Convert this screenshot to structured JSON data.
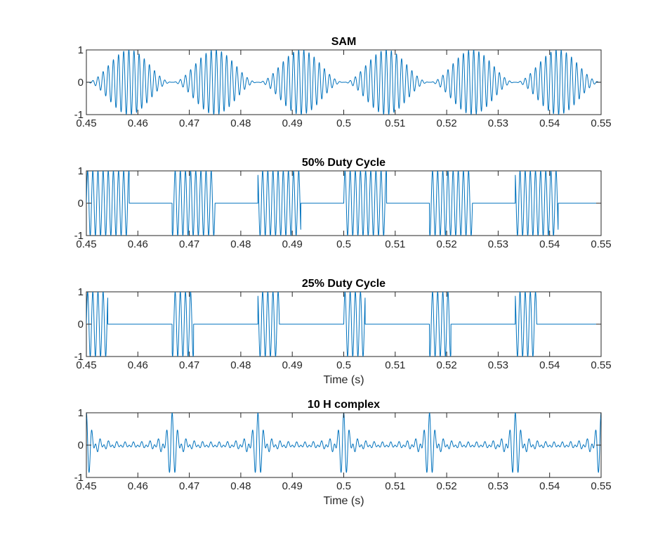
{
  "figure": {
    "background": "#ffffff"
  },
  "chart_data": [
    {
      "type": "line",
      "title": "SAM",
      "xlabel": "",
      "ylabel": "",
      "xlim": [
        0.45,
        0.55
      ],
      "ylim": [
        -1,
        1
      ],
      "xticks": [
        "0.45",
        "0.46",
        "0.47",
        "0.48",
        "0.49",
        "0.5",
        "0.51",
        "0.52",
        "0.53",
        "0.54",
        "0.55"
      ],
      "yticks": [
        "-1",
        "0",
        "1"
      ],
      "color": "#0072BD",
      "signal": {
        "kind": "sam",
        "carrier_hz": 1000,
        "mod_hz": 60
      }
    },
    {
      "type": "line",
      "title": "50% Duty Cycle",
      "xlabel": "",
      "ylabel": "",
      "xlim": [
        0.45,
        0.55
      ],
      "ylim": [
        -1,
        1
      ],
      "xticks": [
        "0.45",
        "0.46",
        "0.47",
        "0.48",
        "0.49",
        "0.5",
        "0.51",
        "0.52",
        "0.53",
        "0.54",
        "0.55"
      ],
      "yticks": [
        "-1",
        "0",
        "1"
      ],
      "color": "#0072BD",
      "signal": {
        "kind": "gated",
        "carrier_hz": 1000,
        "gate_hz": 60,
        "duty": 0.5
      }
    },
    {
      "type": "line",
      "title": "25% Duty Cycle",
      "xlabel": "Time (s)",
      "ylabel": "",
      "xlim": [
        0.45,
        0.55
      ],
      "ylim": [
        -1,
        1
      ],
      "xticks": [
        "0.45",
        "0.46",
        "0.47",
        "0.48",
        "0.49",
        "0.5",
        "0.51",
        "0.52",
        "0.53",
        "0.54",
        "0.55"
      ],
      "yticks": [
        "-1",
        "0",
        "1"
      ],
      "color": "#0072BD",
      "signal": {
        "kind": "gated",
        "carrier_hz": 1000,
        "gate_hz": 60,
        "duty": 0.25
      }
    },
    {
      "type": "line",
      "title": "10 H complex",
      "xlabel": "Time (s)",
      "ylabel": "",
      "xlim": [
        0.45,
        0.55
      ],
      "ylim": [
        -1,
        1
      ],
      "xticks": [
        "0.45",
        "0.46",
        "0.47",
        "0.48",
        "0.49",
        "0.5",
        "0.51",
        "0.52",
        "0.53",
        "0.54",
        "0.55"
      ],
      "yticks": [
        "-1",
        "0",
        "1"
      ],
      "color": "#0072BD",
      "signal": {
        "kind": "harmonic_complex",
        "f0_hz": 60,
        "n_harmonics": 10,
        "lowest_harmonic": 11
      }
    }
  ]
}
